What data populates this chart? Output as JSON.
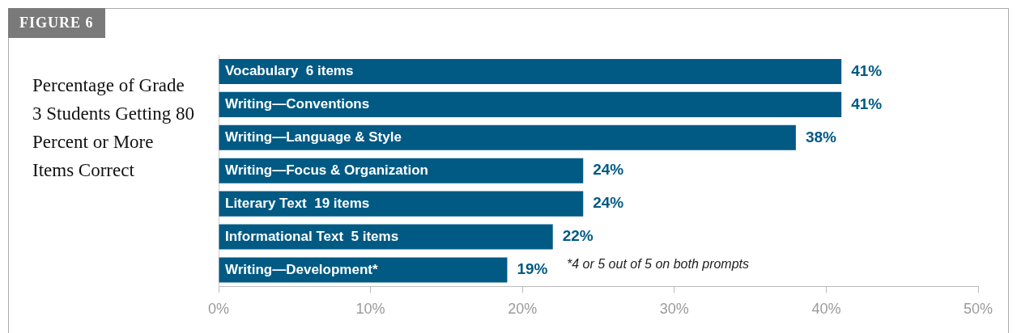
{
  "chart_data": {
    "type": "bar",
    "orientation": "horizontal",
    "title": "FIGURE 6",
    "subtitle": "Percentage of Grade 3 Students Getting 80 Percent or More Items Correct",
    "categories": [
      "Vocabulary  6 items",
      "Writing—Conventions",
      "Writing—Language & Style",
      "Writing—Focus & Organization",
      "Literary Text  19 items",
      "Informational Text  5 items",
      "Writing—Development*"
    ],
    "series": [
      {
        "color": "#005a84",
        "values": [
          41,
          41,
          38,
          24,
          24,
          22,
          19
        ],
        "value_labels": [
          "41%",
          "41%",
          "38%",
          "24%",
          "24%",
          "22%",
          "19%"
        ]
      }
    ],
    "xlim": [
      0,
      50
    ],
    "xticks": [
      {
        "value": 0,
        "label": "0%"
      },
      {
        "value": 10,
        "label": "10%"
      },
      {
        "value": 20,
        "label": "20%"
      },
      {
        "value": 30,
        "label": "30%"
      },
      {
        "value": 40,
        "label": "40%"
      },
      {
        "value": 50,
        "label": "50%"
      }
    ],
    "annotations": [
      "*4 or 5 out of 5 on both prompts"
    ],
    "tick_labels": "x",
    "grid": false,
    "legend": false
  }
}
